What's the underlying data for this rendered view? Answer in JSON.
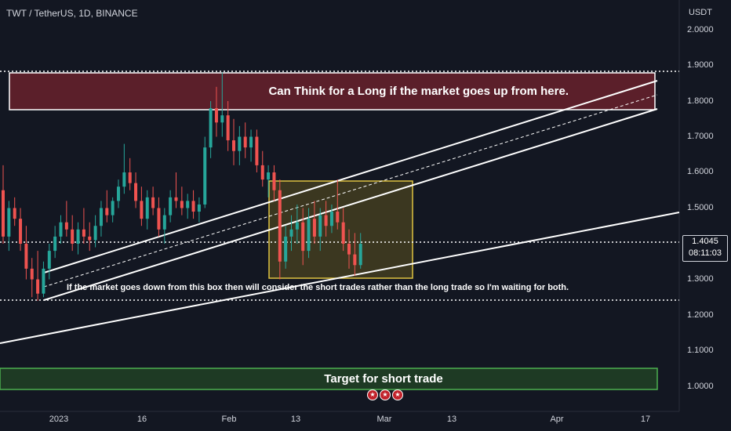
{
  "header": {
    "title": "TWT / TetherUS, 1D, BINANCE"
  },
  "axis": {
    "unit": "USDT",
    "y_ticks": [
      "2.0000",
      "1.9000",
      "1.8000",
      "1.7000",
      "1.6000",
      "1.5000",
      "1.4000",
      "1.3000",
      "1.2000",
      "1.1000",
      "1.0000"
    ],
    "x_ticks": [
      "2023",
      "16",
      "Feb",
      "13",
      "Mar",
      "13",
      "Apr",
      "17"
    ]
  },
  "price_tag": {
    "price": "1.4045",
    "countdown": "08:11:03"
  },
  "annotations": {
    "long_zone": "Can Think for a Long if the market goes up from here.",
    "box_note": "If the market goes down from this box then will consider the short trades rather than the long trade so I'm waiting for both.",
    "target": "Target for short trade"
  },
  "colors": {
    "bg": "#131722",
    "up": "#26a69a",
    "down": "#ef5350",
    "zone_red": "#5b1f2a",
    "zone_green": "#4caf50",
    "box": "#e0c341"
  },
  "icons": [
    "us-flag-event-icon",
    "us-flag-event-icon",
    "us-flag-event-icon"
  ],
  "chart_data": {
    "type": "candlestick",
    "symbol": "TWT / TetherUS",
    "interval": "1D",
    "exchange": "BINANCE",
    "ylim": [
      0.95,
      2.05
    ],
    "x_ticks": [
      "2023",
      "16",
      "Feb",
      "13",
      "Mar",
      "13",
      "Apr",
      "17"
    ],
    "last_price": 1.4045,
    "candles": [
      [
        1.55,
        1.62,
        1.4,
        1.42
      ],
      [
        1.42,
        1.52,
        1.38,
        1.5
      ],
      [
        1.5,
        1.53,
        1.45,
        1.47
      ],
      [
        1.47,
        1.5,
        1.38,
        1.4
      ],
      [
        1.4,
        1.45,
        1.3,
        1.33
      ],
      [
        1.33,
        1.36,
        1.25,
        1.3
      ],
      [
        1.3,
        1.38,
        1.24,
        1.26
      ],
      [
        1.26,
        1.35,
        1.25,
        1.33
      ],
      [
        1.33,
        1.4,
        1.3,
        1.38
      ],
      [
        1.38,
        1.45,
        1.36,
        1.42
      ],
      [
        1.42,
        1.48,
        1.4,
        1.46
      ],
      [
        1.46,
        1.52,
        1.42,
        1.44
      ],
      [
        1.44,
        1.48,
        1.38,
        1.4
      ],
      [
        1.4,
        1.46,
        1.37,
        1.44
      ],
      [
        1.44,
        1.5,
        1.4,
        1.42
      ],
      [
        1.42,
        1.46,
        1.38,
        1.41
      ],
      [
        1.41,
        1.48,
        1.39,
        1.45
      ],
      [
        1.45,
        1.52,
        1.42,
        1.5
      ],
      [
        1.5,
        1.55,
        1.46,
        1.48
      ],
      [
        1.48,
        1.53,
        1.46,
        1.52
      ],
      [
        1.52,
        1.58,
        1.5,
        1.56
      ],
      [
        1.56,
        1.68,
        1.54,
        1.6
      ],
      [
        1.6,
        1.64,
        1.55,
        1.57
      ],
      [
        1.57,
        1.6,
        1.5,
        1.52
      ],
      [
        1.52,
        1.56,
        1.45,
        1.47
      ],
      [
        1.47,
        1.55,
        1.44,
        1.53
      ],
      [
        1.53,
        1.56,
        1.48,
        1.5
      ],
      [
        1.5,
        1.53,
        1.42,
        1.44
      ],
      [
        1.44,
        1.5,
        1.4,
        1.48
      ],
      [
        1.48,
        1.55,
        1.46,
        1.53
      ],
      [
        1.53,
        1.6,
        1.5,
        1.52
      ],
      [
        1.52,
        1.56,
        1.48,
        1.5
      ],
      [
        1.5,
        1.54,
        1.47,
        1.52
      ],
      [
        1.52,
        1.55,
        1.47,
        1.49
      ],
      [
        1.49,
        1.53,
        1.46,
        1.51
      ],
      [
        1.51,
        1.7,
        1.5,
        1.67
      ],
      [
        1.67,
        1.8,
        1.64,
        1.78
      ],
      [
        1.78,
        1.84,
        1.7,
        1.74
      ],
      [
        1.74,
        1.88,
        1.7,
        1.76
      ],
      [
        1.76,
        1.8,
        1.66,
        1.69
      ],
      [
        1.69,
        1.75,
        1.62,
        1.66
      ],
      [
        1.66,
        1.73,
        1.62,
        1.7
      ],
      [
        1.7,
        1.74,
        1.64,
        1.67
      ],
      [
        1.67,
        1.72,
        1.63,
        1.7
      ],
      [
        1.7,
        1.72,
        1.6,
        1.62
      ],
      [
        1.62,
        1.66,
        1.56,
        1.58
      ],
      [
        1.58,
        1.62,
        1.53,
        1.6
      ],
      [
        1.6,
        1.62,
        1.52,
        1.55
      ],
      [
        1.55,
        1.58,
        1.3,
        1.35
      ],
      [
        1.35,
        1.45,
        1.33,
        1.42
      ],
      [
        1.42,
        1.48,
        1.38,
        1.44
      ],
      [
        1.44,
        1.51,
        1.4,
        1.46
      ],
      [
        1.46,
        1.5,
        1.34,
        1.38
      ],
      [
        1.38,
        1.5,
        1.36,
        1.47
      ],
      [
        1.47,
        1.52,
        1.4,
        1.42
      ],
      [
        1.42,
        1.5,
        1.38,
        1.48
      ],
      [
        1.48,
        1.52,
        1.42,
        1.45
      ],
      [
        1.45,
        1.51,
        1.43,
        1.49
      ],
      [
        1.49,
        1.58,
        1.44,
        1.46
      ],
      [
        1.46,
        1.5,
        1.38,
        1.4
      ],
      [
        1.4,
        1.44,
        1.33,
        1.37
      ],
      [
        1.37,
        1.43,
        1.31,
        1.34
      ],
      [
        1.34,
        1.43,
        1.33,
        1.4
      ]
    ],
    "annotations": [
      {
        "type": "zone",
        "label": "Can Think for a Long if the market goes up from here.",
        "y": [
          1.777,
          1.88
        ]
      },
      {
        "type": "zone",
        "label": "Target for short trade",
        "y": [
          0.99,
          1.05
        ]
      },
      {
        "type": "box",
        "label": "If the market goes down from this box then will consider the short trades rather than the long trade so I'm waiting for both.",
        "y": [
          1.3,
          1.58
        ]
      }
    ]
  }
}
